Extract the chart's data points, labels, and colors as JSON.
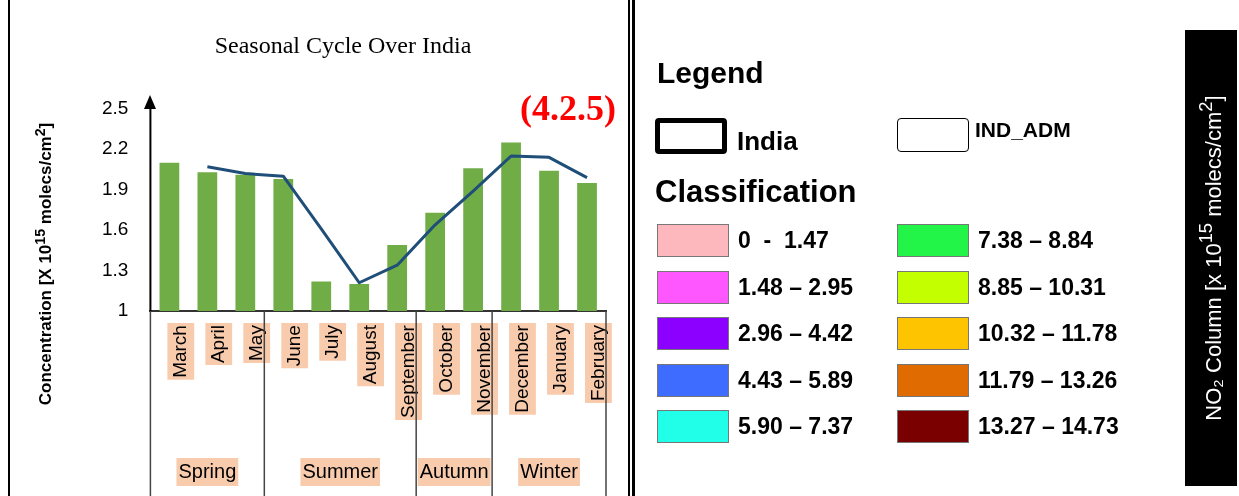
{
  "chart_data": [
    {
      "type": "bar",
      "title": "Seasonal Cycle Over India",
      "ylabel": "Concentration [X 10$^{15}$ molecs/cm$^{2}$]",
      "categories": [
        "March",
        "April",
        "May",
        "June",
        "July",
        "August",
        "September",
        "October",
        "November",
        "December",
        "January",
        "February"
      ],
      "series": [
        {
          "type": "bar",
          "color": "#70ad47",
          "values": [
            2.1,
            2.03,
            2.01,
            1.98,
            1.22,
            1.2,
            1.49,
            1.73,
            2.06,
            2.25,
            2.04,
            1.95
          ]
        },
        {
          "type": "line",
          "color": "#1f4e79",
          "values": [
            null,
            2.07,
            2.02,
            2.0,
            1.61,
            1.21,
            1.34,
            1.64,
            1.89,
            2.15,
            2.14,
            1.99
          ]
        }
      ],
      "ylim": [
        1,
        2.5
      ],
      "yticks": [
        1,
        1.3,
        1.6,
        1.9,
        2.2,
        2.5
      ],
      "grid": false,
      "legend": false,
      "marker": "none",
      "annotations": [
        "(4.2.5)",
        "Spring",
        "Summer",
        "Autumn",
        "Winter"
      ]
    },
    {
      "type": "other",
      "title": "Legend",
      "ylabel": "NO₂ Column [x 10$^{15}$ molecs/cm$^{2}$]",
      "annotations": [
        "India",
        "IND_ADM",
        "Classification"
      ],
      "categories": [
        "0  -  1.47",
        "1.48 – 2.95",
        "2.96 – 4.42",
        "4.43 – 5.89",
        "5.90 – 7.37",
        "7.38 – 8.84",
        "8.85 – 10.31",
        "10.32 – 11.78",
        "11.79 – 13.26",
        "13.27 – 14.73"
      ],
      "colors": [
        "#fcb8bd",
        "#ff57ff",
        "#8b00ff",
        "#3d6cff",
        "#22ffe8",
        "#22f548",
        "#c4ff00",
        "#ffc400",
        "#e06b00",
        "#7a0000"
      ]
    }
  ]
}
